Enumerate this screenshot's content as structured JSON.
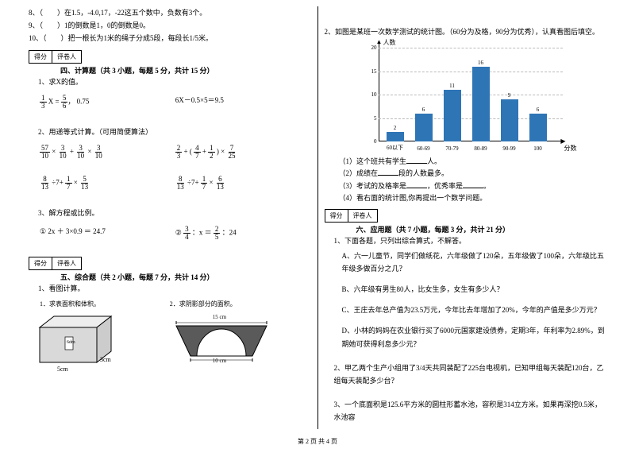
{
  "left": {
    "q8": "8、（　　）在1.5，-4.0,17，-22这五个数中，负数有3个。",
    "q9": "9、（　　）1的倒数是1，0的倒数是0。",
    "q10": "10、（　　）把一根长为1米的绳子分成5段，每段长1/5米。",
    "score1": "得分",
    "score2": "评卷人",
    "sec4": "四、计算题（共 3 小题，每题 5 分，共计 15 分）",
    "p1": "1、求X的值。",
    "eq1a_mid": "X =",
    "eq1a_r": "0.75",
    "eq1b": "6X－0.5×5＝9.5",
    "p2": "2、用递等式计算。（可用简便算法）",
    "p3": "3、解方程或比例。",
    "eq3a": "① 2x ＋ 3×0.9 ＝ 24.7",
    "eq3b_pre": "②",
    "eq3b_mid": "：x ＝",
    "eq3b_suf": "：24",
    "sec5": "五、综合题（共 2 小题，每题 7 分，共计 14 分）",
    "p5_1": "1、看图计算。",
    "p5_1a": "1．求表面积和体积。",
    "p5_1b": "2．求阴影部分的面积。",
    "dim_h": "6dm",
    "dim_d": "3cm",
    "dim_w": "5cm",
    "arch_top": "15 cm",
    "arch_bot": "10 cm"
  },
  "right": {
    "p2": "2、如图是某班一次数学测试的统计图。（60分为及格，90分为优秀），认真看图后填空。",
    "chart": {
      "ylabel": "人数",
      "xlabel": "分数",
      "ymax": 20,
      "ystep": 5,
      "bars": [
        {
          "cat": "60以下",
          "val": 2
        },
        {
          "cat": "60-69",
          "val": 6
        },
        {
          "cat": "70-79",
          "val": 11
        },
        {
          "cat": "80-89",
          "val": 16
        },
        {
          "cat": "90-99",
          "val": 9
        },
        {
          "cat": "100",
          "val": 6
        }
      ],
      "bar_color": "#2e75b6"
    },
    "c1": "（1）这个班共有学生",
    "c1s": "人。",
    "c2": "（2）成绩在",
    "c2s": "段的人数最多。",
    "c3": "（3）考试的及格率是",
    "c3m": "，优秀率是",
    "c3s": "。",
    "c4": "（4）看右面的统计图,你再提出一个数学问题。",
    "sec6": "六、应用题（共 7 小题，每题 3 分，共计 21 分）",
    "a1": "1、下面各题，只列出综合算式，不解答。",
    "a1a": "A、六一儿童节，同学们做纸花，六年级做了120朵，五年级做了100朵，六年级比五年级多做百分之几？",
    "a1b": "B、六年级有男生80人，比女生多，女生有多少人？",
    "a1c": "C、王庄去年总产值为23.5万元，今年比去年增加了20%，今年的产值是多少万元？",
    "a1d": "D、小林的妈妈在农业银行买了6000元国家建设债券，定期3年，年利率为2.89%，到期她可获得利息多少元？",
    "a2": "2、甲乙两个生产小组用了3/4天共同装配了225台电视机，已知甲组每天装配120台，乙组每天装配多少台？",
    "a3": "3、一个底面积是125.6平方米的圆柱形蓄水池，容积是314立方米。如果再深挖0.5米，水池容"
  },
  "footer": "第 2 页 共 4 页"
}
